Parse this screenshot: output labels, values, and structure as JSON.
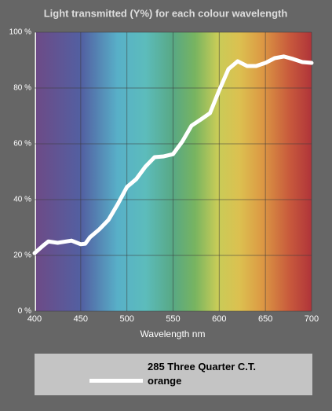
{
  "chart_data": {
    "type": "line",
    "title": "Light transmitted (Y%) for each colour wavelength",
    "x_label": "Wavelength nm",
    "x": [
      400,
      410,
      415,
      425,
      440,
      450,
      455,
      460,
      470,
      480,
      490,
      500,
      510,
      520,
      530,
      540,
      550,
      560,
      570,
      580,
      590,
      600,
      610,
      620,
      630,
      640,
      650,
      660,
      670,
      680,
      690,
      700
    ],
    "series": [
      {
        "name": "285 Three Quarter C.T. orange",
        "color": "#ffffff",
        "values": [
          20.8,
          23.7,
          25,
          24.5,
          25.3,
          24,
          24.2,
          26.5,
          29.3,
          32.7,
          38.3,
          44.5,
          47.3,
          51.8,
          55.2,
          55.5,
          56.3,
          60.8,
          66.5,
          68.7,
          71,
          79.2,
          86.8,
          89.6,
          87.9,
          87.9,
          89,
          90.7,
          91.3,
          90.4,
          89.3,
          89
        ]
      }
    ],
    "xlim": [
      400,
      700
    ],
    "xticks": [
      400,
      450,
      500,
      550,
      600,
      650,
      700
    ],
    "ylim": [
      0,
      100
    ],
    "yticks": [
      {
        "value": 0,
        "label": "0 %"
      },
      {
        "value": 20,
        "label": "20 %"
      },
      {
        "value": 40,
        "label": "40 %"
      },
      {
        "value": 60,
        "label": "60 %"
      },
      {
        "value": 80,
        "label": "80 %"
      },
      {
        "value": 100,
        "label": "100 %"
      }
    ],
    "grid": true
  }
}
